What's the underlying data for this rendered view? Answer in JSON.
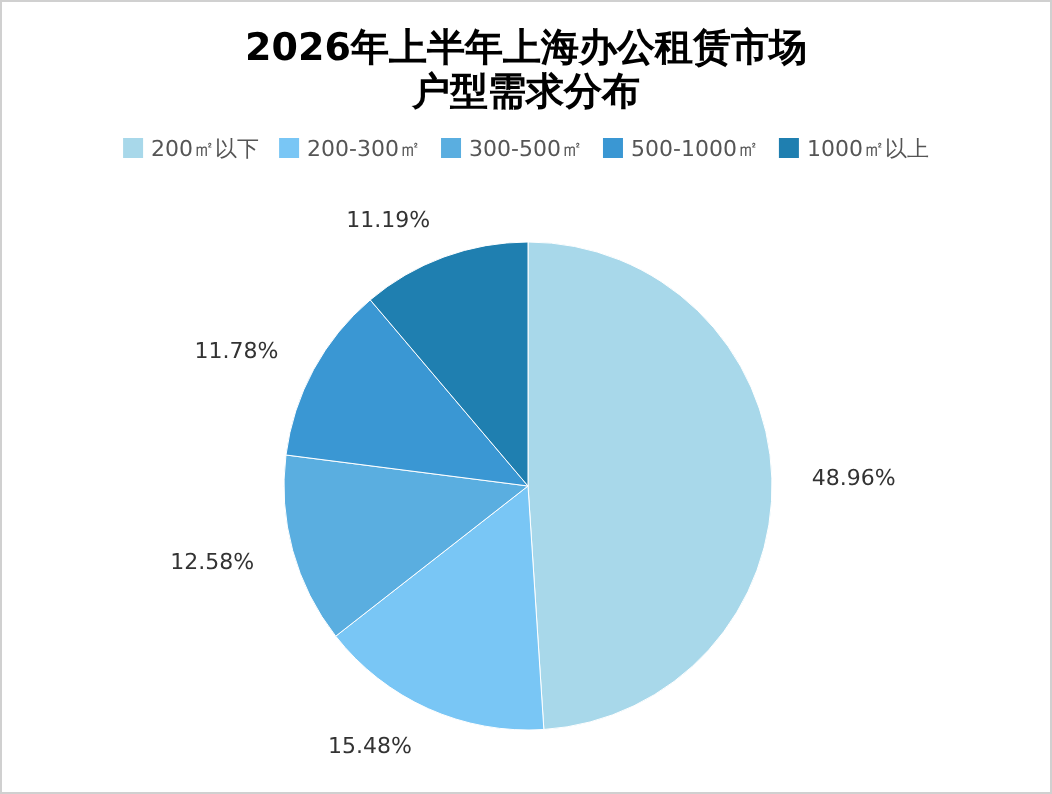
{
  "chart_data": {
    "type": "pie",
    "title": "2026年上半年上海办公租赁市场户型需求分布",
    "categories": [
      "200㎡以下",
      "200-300㎡",
      "300-500㎡",
      "500-1000㎡",
      "1000㎡以上"
    ],
    "values": [
      48.96,
      15.48,
      12.58,
      11.78,
      11.19
    ],
    "value_labels": [
      "48.96%",
      "15.48%",
      "12.58%",
      "11.78%",
      "11.19%"
    ],
    "colors": [
      "#a8d8ea",
      "#79c6f5",
      "#5aaee0",
      "#3a97d3",
      "#1f7fb0"
    ],
    "legend": "top"
  }
}
